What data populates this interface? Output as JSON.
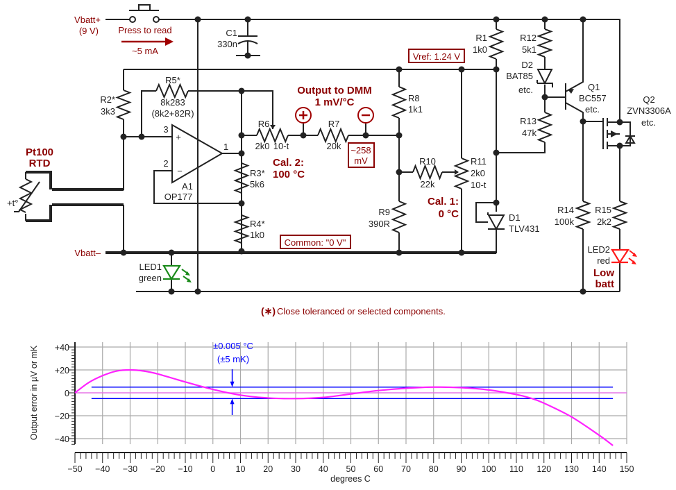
{
  "schematic": {
    "supply_pos": "Vbatt+",
    "supply_pos_voltage": "(9 V)",
    "supply_neg": "Vbatt–",
    "switch_label": "Press to read",
    "current_label": "~5 mA",
    "sensor_name": "Pt100",
    "sensor_type": "RTD",
    "sensor_temp": "+t°",
    "output_title": "Output to DMM",
    "output_scale": "1 mV/°C",
    "output_plus": "+",
    "output_minus": "−",
    "output_offset_1": "~258",
    "output_offset_2": "mV",
    "vref_label": "Vref: 1.24 V",
    "common_label": "Common: \"0 V\"",
    "cal2_1": "Cal. 2:",
    "cal2_2": "100 °C",
    "cal1_1": "Cal. 1:",
    "cal1_2": "0 °C",
    "low_batt_1": "Low",
    "low_batt_2": "batt",
    "footnote_star": "(∗)",
    "footnote": "Close toleranced or selected components.",
    "opamp": {
      "name": "A1",
      "part": "OP177",
      "pin_plus": "3",
      "pin_minus": "2",
      "pin_out": "1",
      "plus": "+",
      "minus": "−"
    },
    "components": {
      "C1": [
        "C1",
        "330n"
      ],
      "R1": [
        "R1",
        "1k0"
      ],
      "R2": [
        "R2*",
        "3k3"
      ],
      "R3": [
        "R3*",
        "5k6"
      ],
      "R4": [
        "R4*",
        "1k0"
      ],
      "R5": [
        "R5*",
        "8k283",
        "(8k2+82R)"
      ],
      "R6": [
        "R6",
        "2k0",
        "10-t"
      ],
      "R7": [
        "R7",
        "20k"
      ],
      "R8": [
        "R8",
        "1k1"
      ],
      "R9": [
        "R9",
        "390R"
      ],
      "R10": [
        "R10",
        "22k"
      ],
      "R11": [
        "R11",
        "2k0",
        "10-t"
      ],
      "R12": [
        "R12",
        "5k1"
      ],
      "R13": [
        "R13",
        "47k"
      ],
      "R14": [
        "R14",
        "100k"
      ],
      "R15": [
        "R15",
        "2k2"
      ],
      "D1": [
        "D1",
        "TLV431"
      ],
      "D2": [
        "D2",
        "BAT85",
        "etc."
      ],
      "Q1": [
        "Q1",
        "BC557",
        "etc."
      ],
      "Q2": [
        "Q2",
        "ZVN3306A",
        "etc."
      ],
      "LED1": [
        "LED1",
        "green"
      ],
      "LED2": [
        "LED2",
        "red"
      ]
    },
    "colors": {
      "label_red": "#8b0000",
      "led_green": "#1a8a1a",
      "led_red": "#ff1a1a"
    }
  },
  "chart_data": {
    "type": "line",
    "xlabel": "degrees C",
    "ylabel": "Output error in µV or mK",
    "xlim": [
      -50,
      150
    ],
    "ylim": [
      -45,
      45
    ],
    "x_ticks": [
      "−50",
      "−40",
      "−30",
      "−20",
      "−10",
      "0",
      "10",
      "20",
      "30",
      "40",
      "50",
      "60",
      "70",
      "80",
      "90",
      "100",
      "110",
      "120",
      "130",
      "140",
      "150"
    ],
    "y_ticks": [
      "+40",
      "+20",
      "0",
      "−20",
      "−40"
    ],
    "y_tick_values": [
      40,
      20,
      0,
      -20,
      -40
    ],
    "grid": true,
    "annotation_1": "±0.005 °C",
    "annotation_2": "(±5 mK)",
    "tolerance_band": {
      "upper": 5,
      "lower": -5,
      "x_from": -44,
      "x_to": 145,
      "color": "#0000ff"
    },
    "series": [
      {
        "color": "#ff22ff",
        "x": [
          -50,
          -45,
          -40,
          -35,
          -30,
          -25,
          -20,
          -10,
          0,
          10,
          20,
          30,
          40,
          50,
          60,
          70,
          80,
          90,
          100,
          110,
          115,
          120,
          130,
          140,
          145
        ],
        "y": [
          0,
          9,
          15,
          19,
          20,
          19,
          16.5,
          9.5,
          3,
          -2,
          -4.5,
          -5,
          -4,
          -1,
          2,
          4,
          5,
          4.5,
          2.5,
          -1.5,
          -4.5,
          -9,
          -21,
          -37,
          -46
        ]
      }
    ]
  }
}
